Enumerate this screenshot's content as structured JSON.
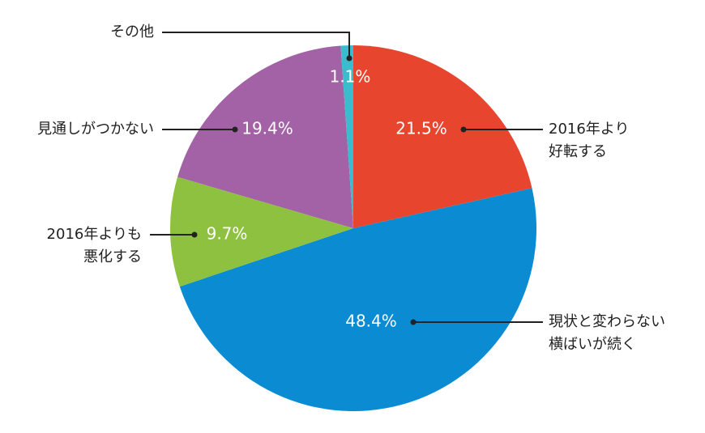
{
  "chart_data": {
    "type": "pie",
    "categories": [
      [
        "2016年より",
        "好転する"
      ],
      [
        "現状と変わらない",
        "横ばいが続く"
      ],
      [
        "2016年よりも",
        "悪化する"
      ],
      [
        "見通しがつかない"
      ],
      [
        "その他"
      ]
    ],
    "values": [
      21.5,
      48.4,
      9.7,
      19.4,
      1.1
    ],
    "value_labels": [
      "21.5%",
      "48.4%",
      "9.7%",
      "19.4%",
      "1.1%"
    ],
    "colors": [
      "#e8452f",
      "#0a8bd2",
      "#8dc13f",
      "#a462a6",
      "#3bbccd"
    ]
  }
}
